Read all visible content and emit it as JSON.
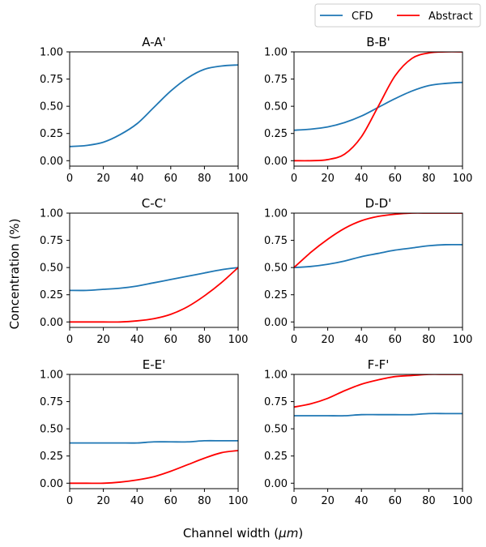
{
  "figure": {
    "ylabel": "Concentration (%)",
    "xlabel_text": "Channel width (",
    "xlabel_unit": "μm",
    "xlabel_close": ")"
  },
  "legend": {
    "placement": "top-right",
    "entries": [
      {
        "label": "CFD",
        "color": "#1f77b4"
      },
      {
        "label": "Abstract",
        "color": "#ff0000"
      }
    ]
  },
  "chart_data": [
    {
      "type": "line",
      "title": "A-A'",
      "xlim": [
        0,
        100
      ],
      "ylim": [
        -0.05,
        1.0
      ],
      "xticks": [
        "0",
        "20",
        "40",
        "60",
        "80",
        "100"
      ],
      "yticks": [
        "0.00",
        "0.25",
        "0.50",
        "0.75",
        "1.00"
      ],
      "x": [
        0,
        10,
        20,
        30,
        40,
        50,
        60,
        70,
        80,
        90,
        100
      ],
      "series": [
        {
          "name": "CFD",
          "color": "#1f77b4",
          "values": [
            0.13,
            0.14,
            0.17,
            0.24,
            0.34,
            0.49,
            0.64,
            0.76,
            0.84,
            0.87,
            0.88
          ]
        }
      ]
    },
    {
      "type": "line",
      "title": "B-B'",
      "xlim": [
        0,
        100
      ],
      "ylim": [
        -0.05,
        1.0
      ],
      "xticks": [
        "0",
        "20",
        "40",
        "60",
        "80",
        "100"
      ],
      "yticks": [
        "0.00",
        "0.25",
        "0.50",
        "0.75",
        "1.00"
      ],
      "x": [
        0,
        10,
        20,
        30,
        40,
        50,
        60,
        70,
        80,
        90,
        100
      ],
      "series": [
        {
          "name": "CFD",
          "color": "#1f77b4",
          "values": [
            0.28,
            0.29,
            0.31,
            0.35,
            0.41,
            0.49,
            0.57,
            0.64,
            0.69,
            0.71,
            0.72
          ]
        },
        {
          "name": "Abstract",
          "color": "#ff0000",
          "values": [
            0.0,
            0.0,
            0.01,
            0.06,
            0.22,
            0.5,
            0.78,
            0.94,
            0.99,
            1.0,
            1.0
          ]
        }
      ]
    },
    {
      "type": "line",
      "title": "C-C'",
      "xlim": [
        0,
        100
      ],
      "ylim": [
        -0.05,
        1.0
      ],
      "xticks": [
        "0",
        "20",
        "40",
        "60",
        "80",
        "100"
      ],
      "yticks": [
        "0.00",
        "0.25",
        "0.50",
        "0.75",
        "1.00"
      ],
      "x": [
        0,
        10,
        20,
        30,
        40,
        50,
        60,
        70,
        80,
        90,
        100
      ],
      "series": [
        {
          "name": "CFD",
          "color": "#1f77b4",
          "values": [
            0.29,
            0.29,
            0.3,
            0.31,
            0.33,
            0.36,
            0.39,
            0.42,
            0.45,
            0.48,
            0.5
          ]
        },
        {
          "name": "Abstract",
          "color": "#ff0000",
          "values": [
            0.0,
            0.0,
            0.0,
            0.0,
            0.01,
            0.03,
            0.07,
            0.14,
            0.24,
            0.36,
            0.5
          ]
        }
      ]
    },
    {
      "type": "line",
      "title": "D-D'",
      "xlim": [
        0,
        100
      ],
      "ylim": [
        -0.05,
        1.0
      ],
      "xticks": [
        "0",
        "20",
        "40",
        "60",
        "80",
        "100"
      ],
      "yticks": [
        "0.00",
        "0.25",
        "0.50",
        "0.75",
        "1.00"
      ],
      "x": [
        0,
        10,
        20,
        30,
        40,
        50,
        60,
        70,
        80,
        90,
        100
      ],
      "series": [
        {
          "name": "CFD",
          "color": "#1f77b4",
          "values": [
            0.5,
            0.51,
            0.53,
            0.56,
            0.6,
            0.63,
            0.66,
            0.68,
            0.7,
            0.71,
            0.71
          ]
        },
        {
          "name": "Abstract",
          "color": "#ff0000",
          "values": [
            0.5,
            0.64,
            0.76,
            0.86,
            0.93,
            0.97,
            0.99,
            1.0,
            1.0,
            1.0,
            1.0
          ]
        }
      ]
    },
    {
      "type": "line",
      "title": "E-E'",
      "xlim": [
        0,
        100
      ],
      "ylim": [
        -0.05,
        1.0
      ],
      "xticks": [
        "0",
        "20",
        "40",
        "60",
        "80",
        "100"
      ],
      "yticks": [
        "0.00",
        "0.25",
        "0.50",
        "0.75",
        "1.00"
      ],
      "x": [
        0,
        10,
        20,
        30,
        40,
        50,
        60,
        70,
        80,
        90,
        100
      ],
      "series": [
        {
          "name": "CFD",
          "color": "#1f77b4",
          "values": [
            0.37,
            0.37,
            0.37,
            0.37,
            0.37,
            0.38,
            0.38,
            0.38,
            0.39,
            0.39,
            0.39
          ]
        },
        {
          "name": "Abstract",
          "color": "#ff0000",
          "values": [
            0.0,
            0.0,
            0.0,
            0.01,
            0.03,
            0.06,
            0.11,
            0.17,
            0.23,
            0.28,
            0.3
          ]
        }
      ]
    },
    {
      "type": "line",
      "title": "F-F'",
      "xlim": [
        0,
        100
      ],
      "ylim": [
        -0.05,
        1.0
      ],
      "xticks": [
        "0",
        "20",
        "40",
        "60",
        "80",
        "100"
      ],
      "yticks": [
        "0.00",
        "0.25",
        "0.50",
        "0.75",
        "1.00"
      ],
      "x": [
        0,
        10,
        20,
        30,
        40,
        50,
        60,
        70,
        80,
        90,
        100
      ],
      "series": [
        {
          "name": "CFD",
          "color": "#1f77b4",
          "values": [
            0.62,
            0.62,
            0.62,
            0.62,
            0.63,
            0.63,
            0.63,
            0.63,
            0.64,
            0.64,
            0.64
          ]
        },
        {
          "name": "Abstract",
          "color": "#ff0000",
          "values": [
            0.7,
            0.73,
            0.78,
            0.85,
            0.91,
            0.95,
            0.98,
            0.99,
            1.0,
            1.0,
            1.0
          ]
        }
      ]
    }
  ]
}
